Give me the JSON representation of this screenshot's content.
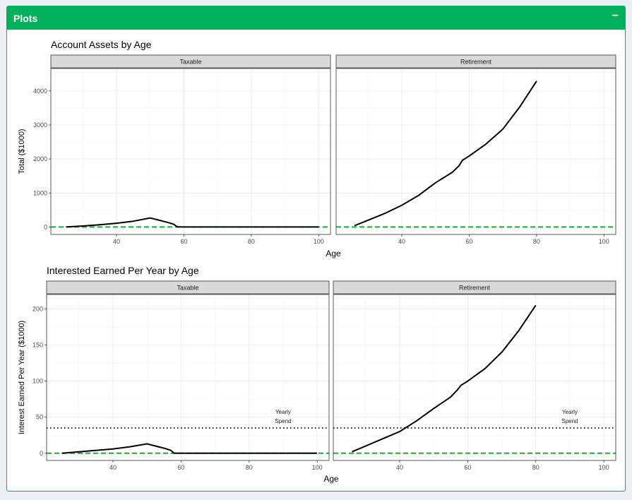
{
  "panel": {
    "title": "Plots",
    "collapse_label": "−"
  },
  "colors": {
    "header_bg": "#00b05a",
    "strip_bg": "#d9d9d9",
    "grid": "#ebebeb",
    "zero_line": "#1fa83c",
    "series": "#000000"
  },
  "chart_data": [
    {
      "type": "line",
      "title": "Account Assets by Age",
      "xlabel": "Age",
      "ylabel": "Total ($1000)",
      "xlim": [
        20.5,
        103.5
      ],
      "ylim": [
        -220,
        4660
      ],
      "xticks": [
        40,
        60,
        80,
        100
      ],
      "yticks": [
        0,
        1000,
        2000,
        3000,
        4000
      ],
      "grid": true,
      "reference_lines": [
        {
          "y": 0,
          "style": "dashed",
          "color": "#1fa83c"
        }
      ],
      "facets": [
        {
          "label": "Taxable",
          "series": [
            {
              "x": [
                25,
                30,
                35,
                40,
                45,
                50,
                55,
                57,
                58,
                60,
                70,
                80,
                90,
                100
              ],
              "y": [
                0,
                30,
                65,
                110,
                170,
                265,
                140,
                80,
                5,
                0,
                0,
                0,
                0,
                0
              ]
            }
          ]
        },
        {
          "label": "Retirement",
          "series": [
            {
              "x": [
                26,
                30,
                35,
                40,
                45,
                50,
                55,
                57,
                58,
                60,
                65,
                70,
                75,
                80
              ],
              "y": [
                40,
                200,
                400,
                640,
                930,
                1300,
                1610,
                1800,
                1960,
                2090,
                2440,
                2880,
                3530,
                4290
              ]
            }
          ]
        }
      ]
    },
    {
      "type": "line",
      "title": "Interested Earned Per Year by Age",
      "xlabel": "Age",
      "ylabel": "Interest Earned Per Year ($1000)",
      "xlim": [
        20.5,
        103.5
      ],
      "ylim": [
        -10,
        220
      ],
      "xticks": [
        40,
        60,
        80,
        100
      ],
      "yticks": [
        0,
        50,
        100,
        150,
        200
      ],
      "grid": true,
      "reference_lines": [
        {
          "y": 0,
          "style": "dashed",
          "color": "#1fa83c"
        },
        {
          "y": 35,
          "style": "dotted",
          "color": "#000000",
          "label": [
            "Yearly",
            "Spend"
          ],
          "label_x": 90
        }
      ],
      "facets": [
        {
          "label": "Taxable",
          "series": [
            {
              "x": [
                25,
                30,
                35,
                40,
                45,
                50,
                55,
                57,
                58,
                60,
                70,
                80,
                90,
                100
              ],
              "y": [
                0,
                2,
                4,
                6,
                9,
                13,
                7,
                4,
                0,
                0,
                0,
                0,
                0,
                0
              ]
            }
          ]
        },
        {
          "label": "Retirement",
          "series": [
            {
              "x": [
                26,
                30,
                35,
                40,
                45,
                50,
                55,
                57,
                58,
                60,
                65,
                70,
                75,
                80
              ],
              "y": [
                2,
                10,
                20,
                30,
                45,
                62,
                78,
                88,
                94,
                100,
                117,
                140,
                170,
                205
              ]
            }
          ]
        }
      ]
    }
  ]
}
